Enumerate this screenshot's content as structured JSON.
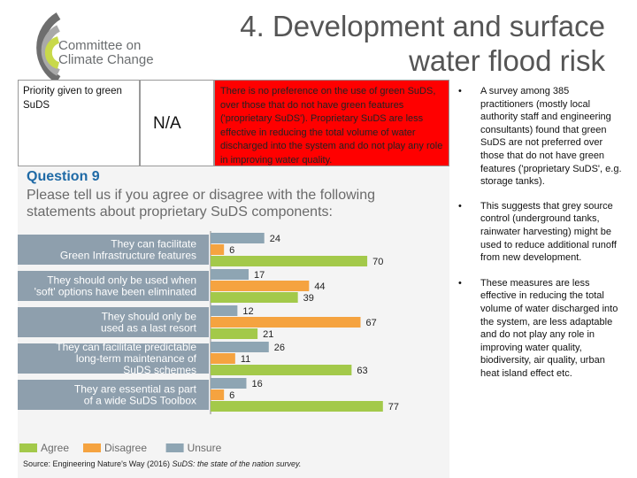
{
  "logo": {
    "line1": "Committee on",
    "line2": "Climate Change",
    "colors": [
      "#6e6e6e",
      "#a0a0a0",
      "#c8d94a"
    ]
  },
  "title": {
    "line1": "4. Development and surface",
    "line2": "water flood risk"
  },
  "table": {
    "priority_label": "Priority given to green SuDS",
    "score": "N/A",
    "assessment": "There is no preference on the use of green SuDS, over those that do not have green features ('proprietary SuDS'). Proprietary SuDS are less effective in reducing the total volume of water discharged into the system and do not play any role in improving water quality.",
    "assessment_color": "#ff0000"
  },
  "survey": {
    "question_number": "Question 9",
    "question_text": "Please tell us if you agree or disagree with the following statements about proprietary SuDS components:",
    "source_prefix": "Source: Engineering Nature's Way (2016) ",
    "source_title": "SuDS: the state of the nation survey."
  },
  "chart_data": {
    "type": "bar",
    "orientation": "horizontal",
    "categories": [
      "They can facilitate Green Infrastructure features",
      "They should only be used when 'soft' options have been eliminated",
      "They should only be used as a last resort",
      "They can facilitate predictable long-term maintenance of SuDS schemes",
      "They are essential as part of a wide SuDS Toolbox"
    ],
    "category_lines": [
      [
        "They can facilitate",
        "Green Infrastructure features"
      ],
      [
        "They should only be used when",
        "'soft' options have been eliminated"
      ],
      [
        "They should only be",
        "used as a last resort"
      ],
      [
        "They can facilitate predictable",
        "long-term maintenance of",
        "SuDS schemes"
      ],
      [
        "They are essential as part",
        "of a wide SuDS Toolbox"
      ]
    ],
    "series": [
      {
        "name": "Unsure",
        "color": "#8ea5b3",
        "values": [
          24,
          17,
          12,
          26,
          16
        ]
      },
      {
        "name": "Disagree",
        "color": "#f5a340",
        "values": [
          6,
          44,
          67,
          11,
          6
        ]
      },
      {
        "name": "Agree",
        "color": "#a3c94a",
        "values": [
          70,
          39,
          21,
          63,
          77
        ]
      }
    ],
    "legend": [
      "Agree",
      "Disagree",
      "Unsure"
    ],
    "legend_placement": "bottom-left",
    "label_band_color": "#8e9fad",
    "xlim": [
      0,
      100
    ]
  },
  "bullets": [
    "A survey among 385 practitioners (mostly local authority staff and engineering consultants) found that green SuDS are not preferred over those that do not have green features ('proprietary SuDS', e.g. storage tanks).",
    "This suggests that grey source control (underground tanks, rainwater harvesting) might be used to reduce additional runoff from new development.",
    "These measures are less effective in reducing the total volume of water discharged into the system, are less adaptable and do not play any role in improving water quality, biodiversity, air quality, urban heat island effect etc."
  ],
  "bullet_symbol": "•"
}
